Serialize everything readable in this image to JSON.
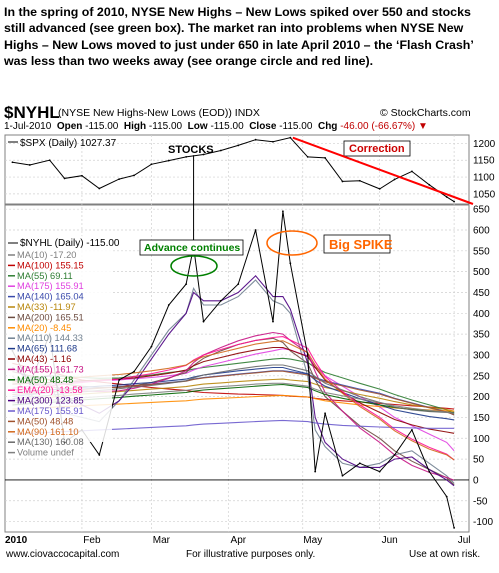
{
  "intro_text": "In the spring of 2010,  NYSE New Highs – New Lows spiked over 550 and stocks still advanced (see green box).   The market ran into problems when NYSE New Highs – New Lows moved to just under 650 in late April 2010 – the ‘Flash Crash’ was less than two weeks away (see orange circle and red line).",
  "header": {
    "symbol": "$NYHL",
    "description": "(NYSE New Highs-New Lows (EOD)) INDX",
    "logo": "© StockCharts.com",
    "date": "1-Jul-2010",
    "open_label": "Open",
    "open": "-115.00",
    "high_label": "High",
    "high": "-115.00",
    "low_label": "Low",
    "low": "-115.00",
    "close_label": "Close",
    "close": "-115.00",
    "chg_label": "Chg",
    "chg": "-46.00 (-66.67%)",
    "chg_arrow": "▼"
  },
  "footer": {
    "left": "www.ciovaccocapital.com",
    "center": "For illustrative purposes only.",
    "right": "Use at own risk."
  },
  "colors": {
    "spx_line": "#000000",
    "nyhl_line": "#000000",
    "correction_line": "#ff0000",
    "green_circle": "#008000",
    "orange_circle": "#ff6600",
    "annotation_text_red": "#cc0000",
    "annotation_text_orange": "#ff6600",
    "annotation_text_green": "#008000",
    "grid": "#d0d0d0",
    "zero_line": "#000000"
  },
  "chart_data": [
    {
      "type": "line",
      "legend": "$SPX (Daily) 1027.37",
      "y_ticks": [
        1050,
        1100,
        1150,
        1200
      ],
      "ylim": [
        1020,
        1225
      ],
      "x": [
        "2010-01-04",
        "2010-01-11",
        "2010-01-19",
        "2010-01-25",
        "2010-02-01",
        "2010-02-08",
        "2010-02-16",
        "2010-02-22",
        "2010-03-01",
        "2010-03-08",
        "2010-03-15",
        "2010-03-22",
        "2010-03-29",
        "2010-04-05",
        "2010-04-12",
        "2010-04-19",
        "2010-04-26",
        "2010-05-03",
        "2010-05-10",
        "2010-05-17",
        "2010-05-24",
        "2010-06-01",
        "2010-06-07",
        "2010-06-14",
        "2010-06-21",
        "2010-06-28",
        "2010-07-01"
      ],
      "values": [
        1144,
        1136,
        1150,
        1096,
        1104,
        1066,
        1094,
        1105,
        1138,
        1149,
        1160,
        1167,
        1179,
        1194,
        1211,
        1205,
        1217,
        1160,
        1157,
        1087,
        1089,
        1065,
        1093,
        1117,
        1077,
        1041,
        1027
      ],
      "annotations": [
        "STOCKS",
        "Correction"
      ]
    },
    {
      "type": "line",
      "legend_main": "$NYHL (Daily) -115.00",
      "y_ticks": [
        650,
        600,
        550,
        500,
        450,
        400,
        350,
        300,
        250,
        200,
        150,
        100,
        50,
        0,
        -50,
        -100
      ],
      "ylim": [
        -125,
        660
      ],
      "x_ticks": [
        "2010",
        "Feb",
        "Mar",
        "Apr",
        "May",
        "Jun",
        "Jul"
      ],
      "x": [
        "2010-01-04",
        "2010-01-11",
        "2010-01-19",
        "2010-01-25",
        "2010-02-01",
        "2010-02-08",
        "2010-02-16",
        "2010-02-22",
        "2010-03-01",
        "2010-03-08",
        "2010-03-15",
        "2010-03-18",
        "2010-03-22",
        "2010-03-29",
        "2010-04-05",
        "2010-04-12",
        "2010-04-19",
        "2010-04-23",
        "2010-04-26",
        "2010-05-03",
        "2010-05-06",
        "2010-05-10",
        "2010-05-17",
        "2010-05-24",
        "2010-06-01",
        "2010-06-07",
        "2010-06-14",
        "2010-06-21",
        "2010-06-28",
        "2010-07-01"
      ],
      "values": [
        310,
        230,
        350,
        90,
        120,
        60,
        240,
        260,
        320,
        420,
        470,
        560,
        380,
        430,
        470,
        600,
        380,
        645,
        520,
        300,
        20,
        160,
        10,
        40,
        20,
        60,
        120,
        20,
        -40,
        -115
      ],
      "indicators": [
        {
          "name": "MA(10) -17.20",
          "color": "#7f7f7f"
        },
        {
          "name": "MA(100) 155.15",
          "color": "#c00000"
        },
        {
          "name": "MA(55) 69.11",
          "color": "#2e7d32"
        },
        {
          "name": "MA(175) 155.91",
          "color": "#e040e0"
        },
        {
          "name": "MA(140) 165.04",
          "color": "#3949ab"
        },
        {
          "name": "MA(33) -11.97",
          "color": "#b8860b"
        },
        {
          "name": "MA(200) 165.51",
          "color": "#6d4c41"
        },
        {
          "name": "MA(20) -8.45",
          "color": "#ff8c00"
        },
        {
          "name": "MA(110) 144.33",
          "color": "#708090"
        },
        {
          "name": "MA(65) 111.68",
          "color": "#1e3a8a"
        },
        {
          "name": "MA(43) -1.16",
          "color": "#8b0000"
        },
        {
          "name": "MA(155) 161.73",
          "color": "#c71585"
        },
        {
          "name": "MA(50) 48.48",
          "color": "#006400"
        },
        {
          "name": "EMA(20) -13.58",
          "color": "#ff1493"
        },
        {
          "name": "MA(300) 123.85",
          "color": "#4b0082"
        },
        {
          "name": "MA(175) 155.91",
          "color": "#6a5acd"
        },
        {
          "name": "MA(50) 48.48",
          "color": "#a0522d"
        },
        {
          "name": "MA(90) 161.10",
          "color": "#d2691e"
        },
        {
          "name": "MA(130) 160.08",
          "color": "#696969"
        },
        {
          "name": "Volume undef",
          "color": "#808080"
        }
      ],
      "annotations": [
        "Advance continues",
        "Big SPIKE"
      ]
    }
  ]
}
